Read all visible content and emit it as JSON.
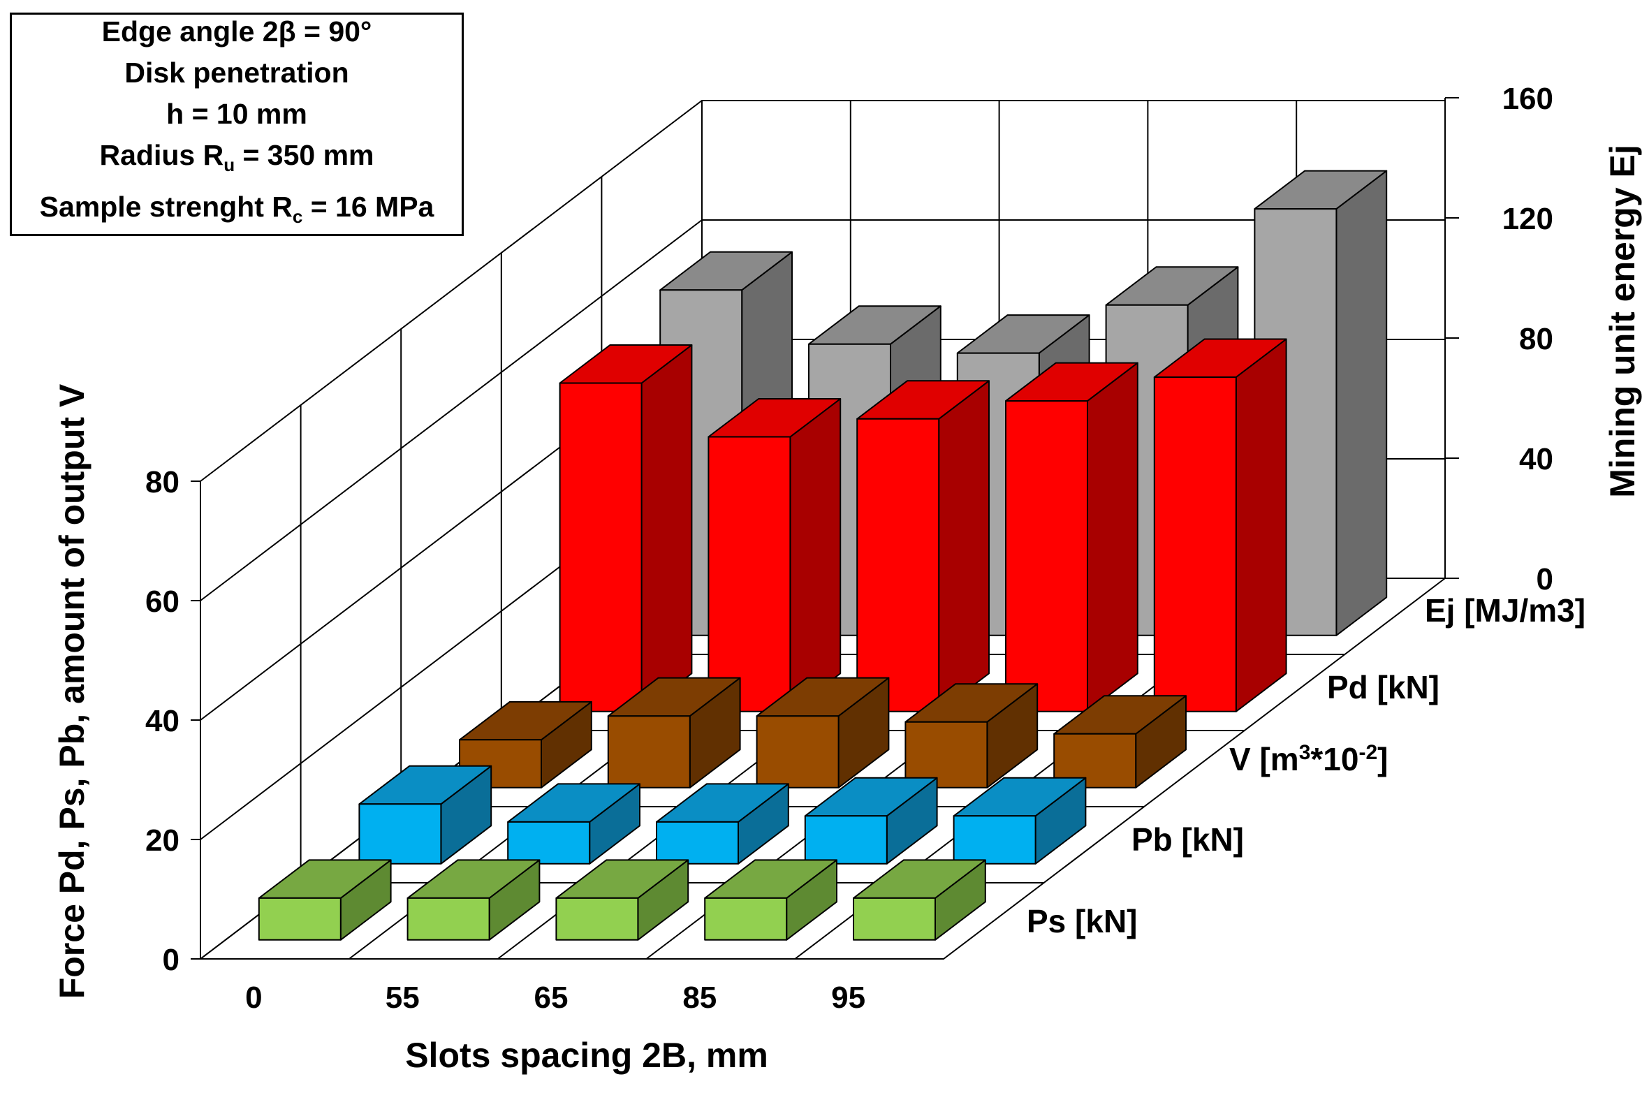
{
  "chart_data": {
    "type": "bar",
    "style": "3d-clustered-depth",
    "categories": [
      "0",
      "55",
      "65",
      "85",
      "95"
    ],
    "xlabel": "Slots spacing 2B, mm",
    "ylabel_left": "Force Pd, Ps, Pb, amount of output V",
    "ylabel_right": "Mining unit energy Ej",
    "ylim_left": [
      0,
      80
    ],
    "yticks_left": [
      "0",
      "20",
      "40",
      "60",
      "80"
    ],
    "ylim_right": [
      0,
      160
    ],
    "yticks_right": [
      "0",
      "40",
      "80",
      "120",
      "160"
    ],
    "series": [
      {
        "name": "Ps [kN]",
        "axis": "left",
        "values": [
          7,
          7,
          7,
          7,
          7
        ],
        "colors": {
          "front": "#92d050",
          "top": "#77a842",
          "side": "#5e8a32"
        }
      },
      {
        "name": "Pb [kN]",
        "axis": "left",
        "values": [
          10,
          7,
          7,
          8,
          8
        ],
        "colors": {
          "front": "#00b0f0",
          "top": "#0a8ec4",
          "side": "#0a6e98"
        }
      },
      {
        "name": "V [m3*10-2]",
        "axis": "left",
        "values": [
          8,
          12,
          12,
          11,
          9
        ],
        "colors": {
          "front": "#994c00",
          "top": "#7d3d02",
          "side": "#613001"
        }
      },
      {
        "name": "Pd [kN]",
        "axis": "left",
        "values": [
          55,
          46,
          49,
          52,
          56
        ],
        "colors": {
          "front": "#ff0000",
          "top": "#e00000",
          "side": "#a80000"
        }
      },
      {
        "name": "Ej [MJ/m3]",
        "axis": "right",
        "values": [
          115,
          97,
          94,
          110,
          142
        ],
        "colors": {
          "front": "#a6a6a6",
          "top": "#8a8a8a",
          "side": "#6b6b6b"
        }
      }
    ],
    "legend_labels": [
      {
        "text": "Ps [kN]"
      },
      {
        "text": "Pb [kN]"
      },
      {
        "text": "V [m",
        "sup1": "3",
        "mid": "*10",
        "sup2": "-2",
        "end": "]"
      },
      {
        "text": "Pd [kN]"
      },
      {
        "text": "Ej [MJ/m3]"
      }
    ],
    "annotation": {
      "line1": "Edge angle 2β = 90°",
      "line2": "Disk penetration",
      "line3": "h = 10 mm",
      "line4_main": "Radius R",
      "line4_sub": "u",
      "line4_end": " = 350 mm",
      "line5_main": "Sample strenght R",
      "line5_sub": "c",
      "line5_end": " = 16 MPa"
    }
  }
}
